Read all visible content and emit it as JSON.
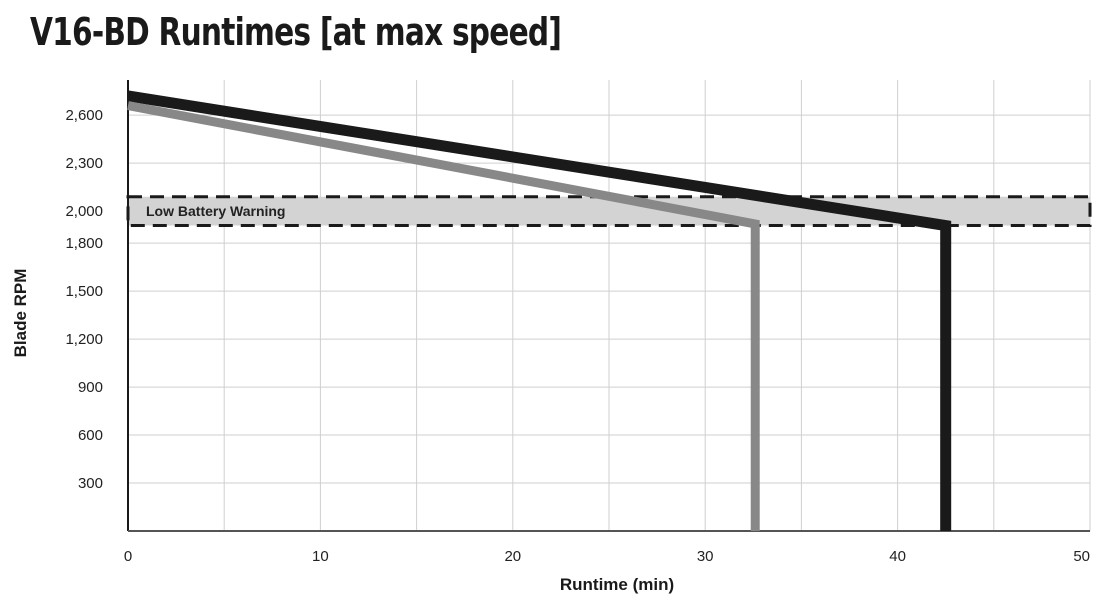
{
  "title": "V16-BD Runtimes [at max speed]",
  "chart_data": {
    "type": "line",
    "title": "V16-BD Runtimes [at max speed]",
    "xlabel": "Runtime (min)",
    "ylabel": "Blade RPM",
    "xlim": [
      0,
      50
    ],
    "ylim": [
      0,
      2820
    ],
    "x_ticks": [
      0,
      10,
      20,
      30,
      40,
      50
    ],
    "x_tick_labels": [
      "0",
      "10",
      "20",
      "30",
      "40",
      "50"
    ],
    "y_ticks": [
      300,
      600,
      900,
      1200,
      1500,
      1800,
      2000,
      2300,
      2600
    ],
    "y_tick_labels": [
      "300",
      "600",
      "900",
      "1,200",
      "1,500",
      "1,800",
      "2,000",
      "2,300",
      "2,600"
    ],
    "grid": true,
    "series": [
      {
        "color": "#1a1a1a",
        "points": [
          [
            0,
            2720
          ],
          [
            42.5,
            1910
          ],
          [
            42.5,
            0
          ]
        ]
      },
      {
        "color": "#888888",
        "points": [
          [
            0,
            2660
          ],
          [
            32.6,
            1920
          ],
          [
            32.6,
            0
          ]
        ]
      }
    ],
    "annotations": [
      {
        "type": "band",
        "label": "Low Battery Warning",
        "y_range": [
          1910,
          2090
        ],
        "fill": "#d3d3d3",
        "border": "dashed"
      }
    ]
  }
}
